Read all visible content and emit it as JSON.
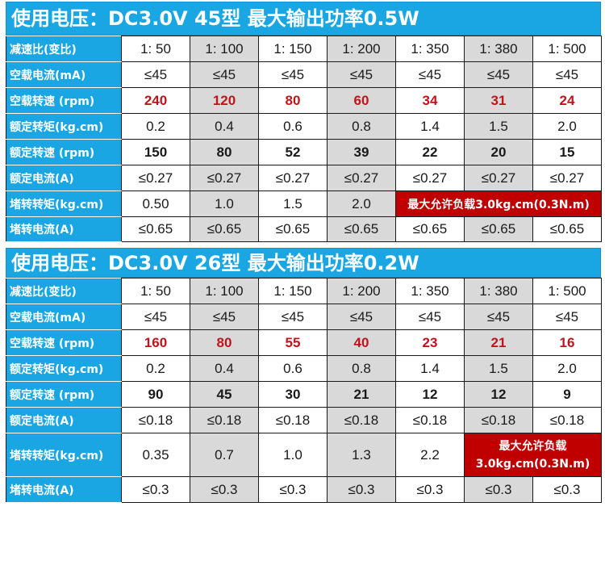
{
  "blocks": [
    {
      "title": "使用电压：DC3.0V  45型  最大输出功率0.5W",
      "rows": [
        {
          "label": "减速比(变比)",
          "style": "ratio",
          "values": [
            "1: 50",
            "1: 100",
            "1: 150",
            "1: 200",
            "1: 350",
            "1: 380",
            "1: 500"
          ]
        },
        {
          "label": "空载电流(mA)",
          "style": "plain",
          "values": [
            "≤45",
            "≤45",
            "≤45",
            "≤45",
            "≤45",
            "≤45",
            "≤45"
          ]
        },
        {
          "label": "空载转速 (rpm)",
          "style": "red",
          "values": [
            "240",
            "120",
            "80",
            "60",
            "34",
            "31",
            "24"
          ]
        },
        {
          "label": "额定转矩(kg.cm)",
          "style": "plain",
          "values": [
            "0.2",
            "0.4",
            "0.6",
            "0.8",
            "1.4",
            "1.5",
            "2.0"
          ]
        },
        {
          "label": "额定转速 (rpm)",
          "style": "bold",
          "values": [
            "150",
            "80",
            "52",
            "39",
            "22",
            "20",
            "15"
          ]
        },
        {
          "label": "额定电流(A)",
          "style": "plain",
          "values": [
            "≤0.27",
            "≤0.27",
            "≤0.27",
            "≤0.27",
            "≤0.27",
            "≤0.27",
            "≤0.27"
          ]
        },
        {
          "label": "堵转转矩(kg.cm)",
          "style": "plain",
          "values": [
            "0.50",
            "1.0",
            "1.5",
            "2.0"
          ],
          "note": "最大允许负载3.0kg.cm(0.3N.m)"
        },
        {
          "label": "堵转电流(A)",
          "style": "plain",
          "values": [
            "≤0.65",
            "≤0.65",
            "≤0.65",
            "≤0.65",
            "≤0.65",
            "≤0.65",
            "≤0.65"
          ]
        }
      ]
    },
    {
      "title": "使用电压：DC3.0V  26型  最大输出功率0.2W",
      "rows": [
        {
          "label": "减速比(变比)",
          "style": "ratio",
          "values": [
            "1: 50",
            "1: 100",
            "1: 150",
            "1: 200",
            "1: 350",
            "1: 380",
            "1: 500"
          ]
        },
        {
          "label": "空载电流(mA)",
          "style": "plain",
          "values": [
            "≤45",
            "≤45",
            "≤45",
            "≤45",
            "≤45",
            "≤45",
            "≤45"
          ]
        },
        {
          "label": "空载转速 (rpm)",
          "style": "red",
          "values": [
            "160",
            "80",
            "55",
            "40",
            "23",
            "21",
            "16"
          ]
        },
        {
          "label": "额定转矩(kg.cm)",
          "style": "plain",
          "values": [
            "0.2",
            "0.4",
            "0.6",
            "0.8",
            "1.4",
            "1.5",
            "2.0"
          ]
        },
        {
          "label": "额定转速 (rpm)",
          "style": "bold",
          "values": [
            "90",
            "45",
            "30",
            "21",
            "12",
            "12",
            "9"
          ]
        },
        {
          "label": "额定电流(A)",
          "style": "plain",
          "values": [
            "≤0.18",
            "≤0.18",
            "≤0.18",
            "≤0.18",
            "≤0.18",
            "≤0.18",
            "≤0.18"
          ]
        },
        {
          "label": "堵转转矩(kg.cm)",
          "style": "plain",
          "values": [
            "0.35",
            "0.7",
            "1.0",
            "1.3",
            "2.2"
          ],
          "note_lines": [
            "最大允许负载",
            "3.0kg.cm(0.3N.m)"
          ]
        },
        {
          "label": "堵转电流(A)",
          "style": "plain",
          "values": [
            "≤0.3",
            "≤0.3",
            "≤0.3",
            "≤0.3",
            "≤0.3",
            "≤0.3",
            "≤0.3"
          ]
        }
      ]
    }
  ]
}
